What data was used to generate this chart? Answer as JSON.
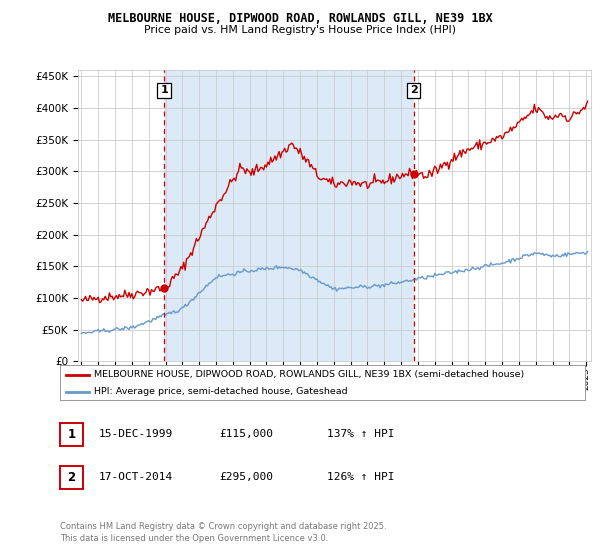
{
  "title": "MELBOURNE HOUSE, DIPWOOD ROAD, ROWLANDS GILL, NE39 1BX",
  "subtitle": "Price paid vs. HM Land Registry's House Price Index (HPI)",
  "background_color": "#ffffff",
  "plot_bg_color": "#ffffff",
  "shaded_bg_color": "#dce9f7",
  "grid_color": "#cccccc",
  "red_line_color": "#cc0000",
  "blue_line_color": "#6699cc",
  "marker1_label": "1",
  "marker2_label": "2",
  "marker1_date": "15-DEC-1999",
  "marker1_price": "£115,000",
  "marker1_hpi": "137% ↑ HPI",
  "marker2_date": "17-OCT-2014",
  "marker2_price": "£295,000",
  "marker2_hpi": "126% ↑ HPI",
  "legend_red": "MELBOURNE HOUSE, DIPWOOD ROAD, ROWLANDS GILL, NE39 1BX (semi-detached house)",
  "legend_blue": "HPI: Average price, semi-detached house, Gateshead",
  "footer": "Contains HM Land Registry data © Crown copyright and database right 2025.\nThis data is licensed under the Open Government Licence v3.0.",
  "ylim": [
    0,
    460000
  ],
  "yticks": [
    0,
    50000,
    100000,
    150000,
    200000,
    250000,
    300000,
    350000,
    400000,
    450000
  ]
}
